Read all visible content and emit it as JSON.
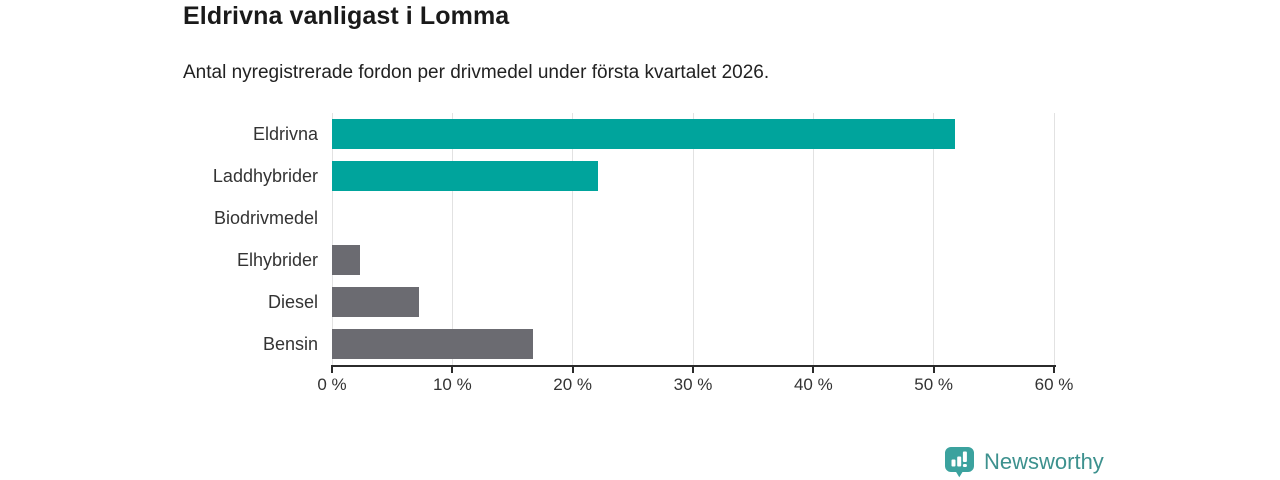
{
  "title": "Eldrivna vanligast i Lomma",
  "subtitle": "Antal nyregistrerade fordon per drivmedel under första kvartalet 2026.",
  "chart_data": {
    "type": "bar",
    "orientation": "horizontal",
    "categories": [
      "Eldrivna",
      "Laddhybrider",
      "Biodrivmedel",
      "Elhybrider",
      "Diesel",
      "Bensin"
    ],
    "values": [
      51.8,
      22.1,
      0,
      2.3,
      7.2,
      16.7
    ],
    "unit": "%",
    "bar_colors": [
      "#00a49c",
      "#00a49c",
      "#6b6b71",
      "#6b6b71",
      "#6b6b71",
      "#6b6b71"
    ],
    "xlabel": "",
    "ylabel": "",
    "xlim": [
      0,
      60
    ],
    "x_ticks": [
      0,
      10,
      20,
      30,
      40,
      50,
      60
    ],
    "x_tick_labels": [
      "0 %",
      "10 %",
      "20 %",
      "30 %",
      "40 %",
      "50 %",
      "60 %"
    ],
    "grid": true,
    "legend": false
  },
  "colors": {
    "teal": "#00a49c",
    "gray": "#6b6b71",
    "grid": "#e2e2e2",
    "axis": "#2b2b2b",
    "tick_text": "#333333",
    "logo_mark": "#3ba29e",
    "logo_text": "#3d918e"
  },
  "branding": {
    "logo_text": "Newsworthy",
    "logo_icon": "newsworthy-pin-bar-chart-icon"
  }
}
